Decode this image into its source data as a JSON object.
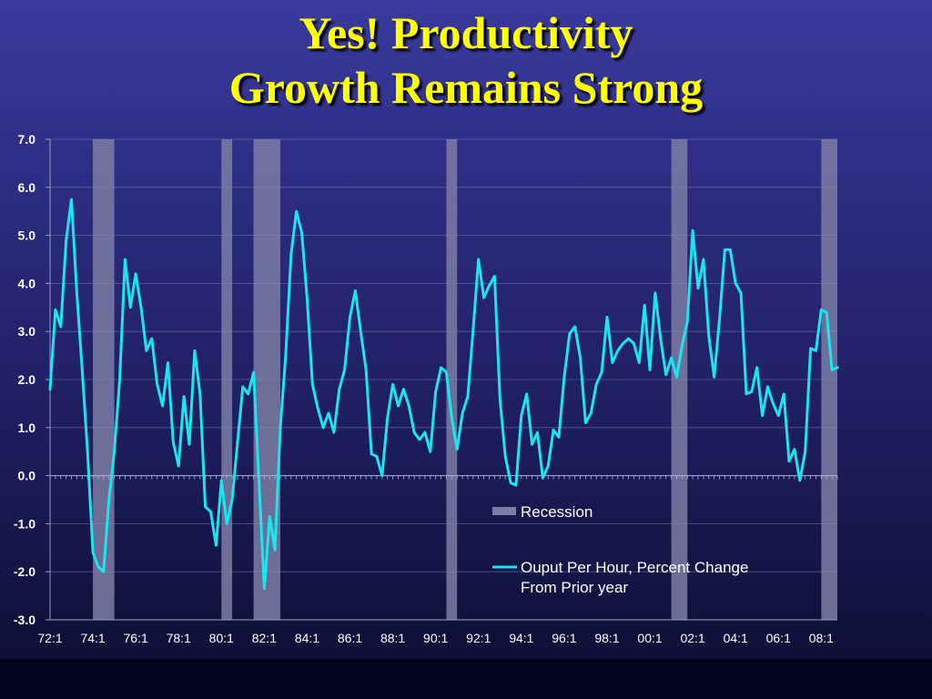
{
  "slide": {
    "title_line1": "Yes! Productivity",
    "title_line2": "Growth Remains Strong"
  },
  "colors": {
    "title": "#ffff00",
    "line": "#19e6ee",
    "recession": "#7c7ca4",
    "axis_text": "#ffffff"
  },
  "chart_data": {
    "type": "line",
    "title": "",
    "xlabel": "",
    "ylabel": "",
    "ylim": [
      -3.0,
      7.0
    ],
    "y_ticks": [
      "7.0",
      "6.0",
      "5.0",
      "4.0",
      "3.0",
      "2.0",
      "1.0",
      "0.0",
      "-1.0",
      "-2.0",
      "-3.0"
    ],
    "x_ticks": [
      "72:1",
      "74:1",
      "76:1",
      "78:1",
      "80:1",
      "82:1",
      "84:1",
      "86:1",
      "88:1",
      "90:1",
      "92:1",
      "94:1",
      "96:1",
      "98:1",
      "00:1",
      "02:1",
      "04:1",
      "06:1",
      "08:1"
    ],
    "x_start": "72:1",
    "x_end": "08:4",
    "legend_position": "bottom-right",
    "grid": true,
    "recessions": [
      {
        "start": "74:1",
        "end": "75:1"
      },
      {
        "start": "80:1",
        "end": "80:3"
      },
      {
        "start": "81:3",
        "end": "82:4"
      },
      {
        "start": "90:3",
        "end": "91:1"
      },
      {
        "start": "01:1",
        "end": "01:4"
      },
      {
        "start": "08:1",
        "end": "08:4"
      }
    ],
    "series": [
      {
        "name": "Recession",
        "kind": "bar"
      },
      {
        "name": "Ouput Per Hour, Percent Change From Prior year",
        "kind": "line",
        "values": [
          1.8,
          3.45,
          3.1,
          4.9,
          5.75,
          3.8,
          2.2,
          0.5,
          -1.6,
          -1.9,
          -2.0,
          -0.5,
          0.5,
          2.0,
          4.5,
          3.5,
          4.2,
          3.5,
          2.6,
          2.85,
          1.9,
          1.45,
          2.35,
          0.7,
          0.2,
          1.65,
          0.65,
          2.6,
          1.7,
          -0.65,
          -0.75,
          -1.45,
          -0.1,
          -1.0,
          -0.5,
          0.7,
          1.85,
          1.7,
          2.15,
          -0.1,
          -2.35,
          -0.85,
          -1.55,
          1.0,
          2.5,
          4.6,
          5.5,
          5.05,
          3.7,
          1.9,
          1.4,
          1.0,
          1.3,
          0.9,
          1.8,
          2.2,
          3.3,
          3.85,
          3.0,
          2.2,
          0.45,
          0.4,
          0.0,
          1.2,
          1.9,
          1.45,
          1.8,
          1.45,
          0.9,
          0.75,
          0.9,
          0.5,
          1.75,
          2.25,
          2.15,
          1.2,
          0.55,
          1.3,
          1.65,
          3.05,
          4.5,
          3.7,
          3.95,
          4.15,
          1.6,
          0.4,
          -0.15,
          -0.2,
          1.25,
          1.7,
          0.65,
          0.9,
          -0.05,
          0.2,
          0.95,
          0.8,
          2.05,
          2.95,
          3.1,
          2.45,
          1.1,
          1.3,
          1.9,
          2.15,
          3.3,
          2.35,
          2.6,
          2.75,
          2.85,
          2.75,
          2.35,
          3.55,
          2.2,
          3.8,
          2.85,
          2.1,
          2.45,
          2.05,
          2.7,
          3.2,
          5.1,
          3.9,
          4.5,
          2.9,
          2.05,
          3.25,
          4.7,
          4.7,
          4.0,
          3.8,
          1.7,
          1.75,
          2.25,
          1.25,
          1.85,
          1.5,
          1.25,
          1.7,
          0.3,
          0.55,
          -0.1,
          0.5,
          2.65,
          2.6,
          3.45,
          3.4,
          2.2,
          2.25
        ]
      }
    ]
  }
}
